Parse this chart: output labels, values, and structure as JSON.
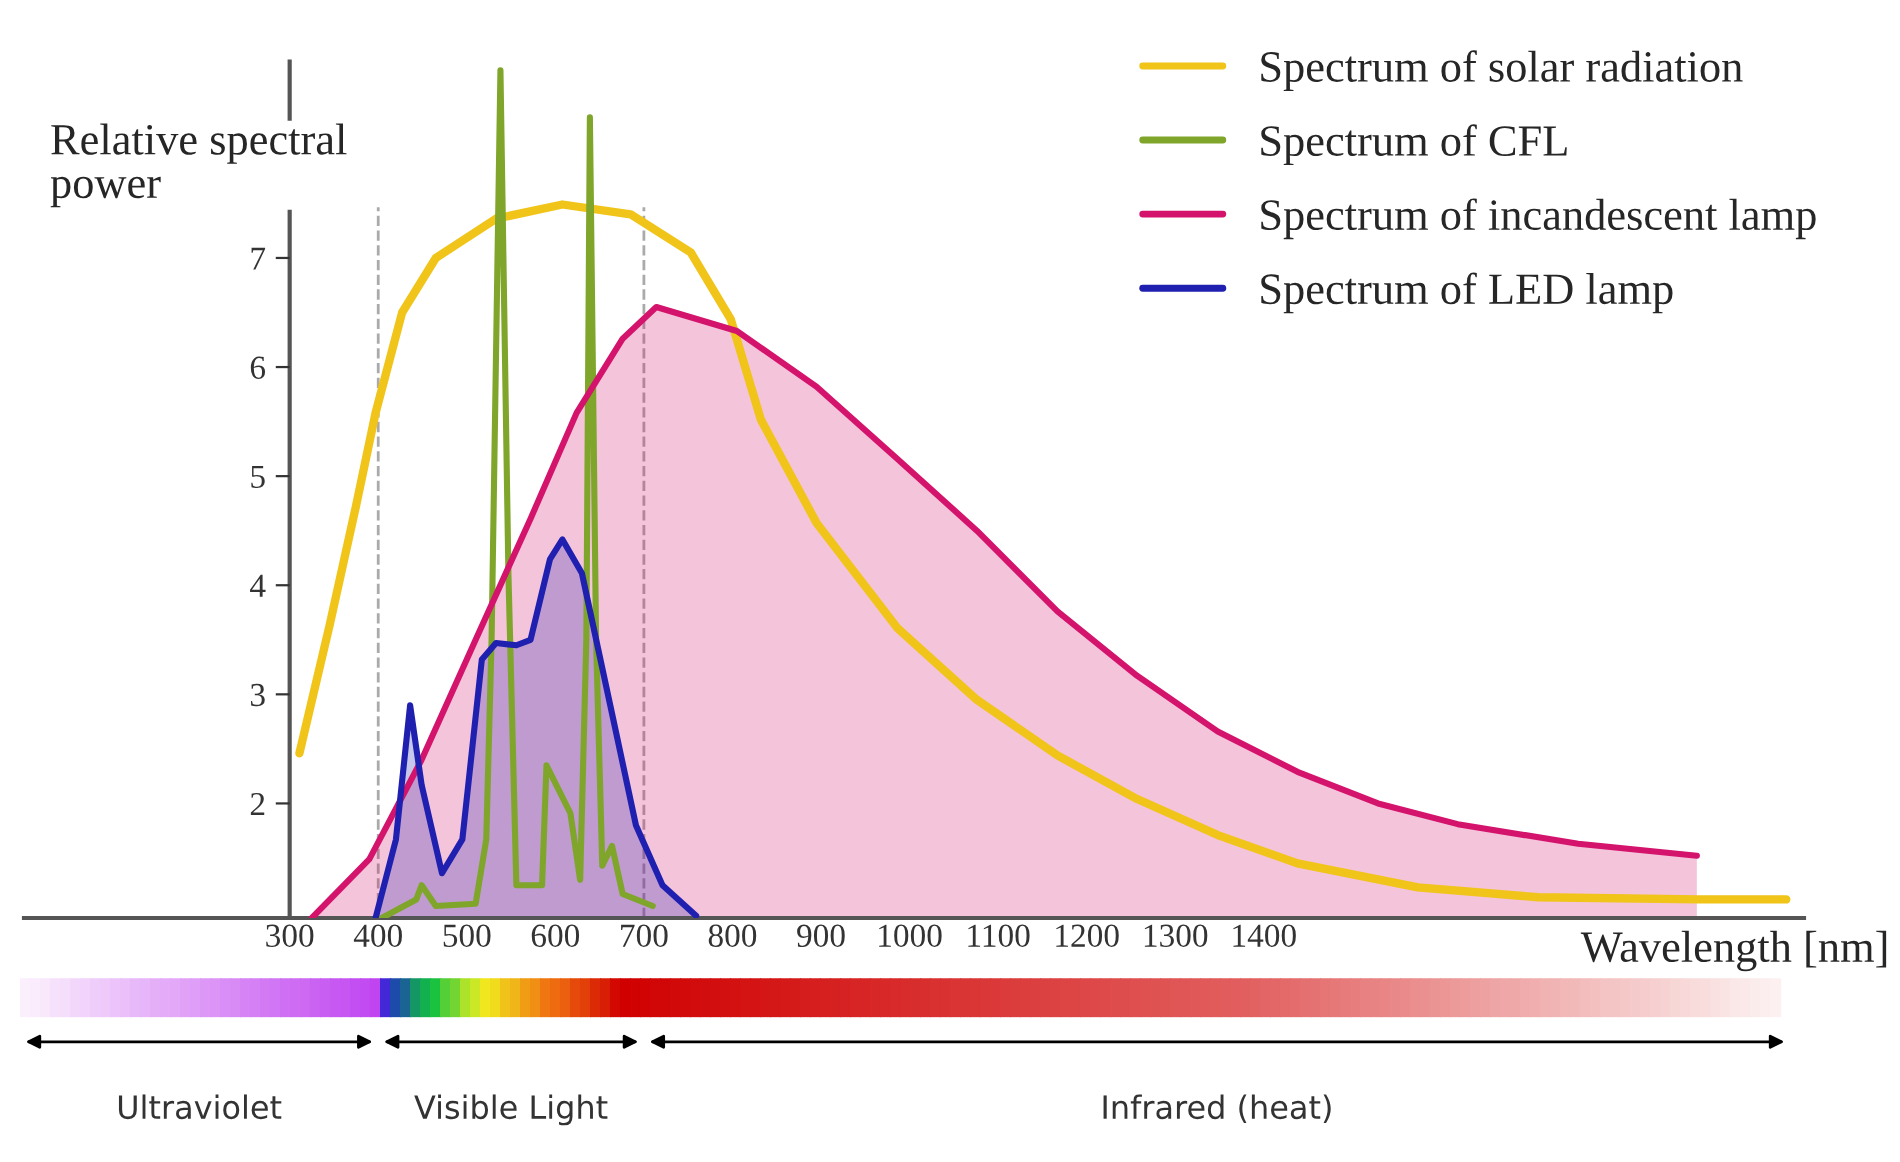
{
  "chart_data": {
    "type": "line",
    "xlabel": "Wavelength [nm]",
    "ylabel": "Relative spectral\npower",
    "xlim": [
      0,
      2010
    ],
    "ylim": [
      0.95,
      8.8
    ],
    "xticks": [
      300,
      400,
      500,
      600,
      700,
      800,
      900,
      1000,
      1100,
      1200,
      1300,
      1400
    ],
    "yticks": [
      2,
      3,
      4,
      5,
      6,
      7
    ],
    "legend": "top right",
    "series": [
      {
        "name": "Spectrum of solar radiation",
        "color": "#f0c419",
        "x": [
          311,
          345,
          375,
          397,
          427,
          465,
          533,
          608,
          685,
          753,
          798,
          832,
          895,
          986,
          1076,
          1167,
          1257,
          1348,
          1438,
          1574,
          1710,
          1891,
          1990
        ],
        "values": [
          2.46,
          3.63,
          4.73,
          5.58,
          6.5,
          7.0,
          7.36,
          7.49,
          7.4,
          7.05,
          6.44,
          5.52,
          4.57,
          3.61,
          2.95,
          2.44,
          2.04,
          1.71,
          1.45,
          1.23,
          1.14,
          1.12,
          1.12
        ]
      },
      {
        "name": "Spectrum of CFL",
        "color": "#7fa62a",
        "x": [
          404,
          443,
          449,
          465,
          510,
          522,
          528,
          538,
          547,
          556,
          585,
          590,
          601,
          617,
          628,
          635,
          639,
          646,
          653,
          664,
          676,
          710
        ],
        "values": [
          0.95,
          1.12,
          1.25,
          1.06,
          1.08,
          1.67,
          3.5,
          8.72,
          4.11,
          1.25,
          1.25,
          2.35,
          2.17,
          1.91,
          1.3,
          3.5,
          8.29,
          3.5,
          1.43,
          1.61,
          1.17,
          1.06
        ]
      },
      {
        "name": "Spectrum of incandescent lamp",
        "type": "area",
        "color": "#d4136c",
        "x": [
          325,
          390,
          449,
          510,
          572,
          624,
          676,
          714,
          805,
          895,
          986,
          1076,
          1167,
          1257,
          1348,
          1438,
          1529,
          1619,
          1755,
          1889
        ],
        "values": [
          0.95,
          1.49,
          2.4,
          3.5,
          4.61,
          5.58,
          6.26,
          6.55,
          6.33,
          5.82,
          5.16,
          4.5,
          3.76,
          3.17,
          2.66,
          2.29,
          2.0,
          1.81,
          1.63,
          1.52
        ]
      },
      {
        "name": "Spectrum of LED lamp",
        "type": "area",
        "color": "#2020b0",
        "x": [
          397,
          420,
          436,
          449,
          472,
          495,
          517,
          533,
          556,
          572,
          594,
          608,
          630,
          662,
          691,
          721,
          759
        ],
        "values": [
          0.95,
          1.67,
          2.9,
          2.17,
          1.36,
          1.67,
          3.32,
          3.47,
          3.45,
          3.5,
          4.24,
          4.42,
          4.11,
          2.9,
          1.8,
          1.25,
          0.97
        ]
      }
    ],
    "ref_lines": [
      {
        "axis": "x",
        "value": 400,
        "color": "#aaaaaa",
        "line_style": "dashed"
      },
      {
        "axis": "x",
        "value": 700,
        "color": "#aaaaaa",
        "line_style": "dashed"
      }
    ],
    "annotations": [
      "Ultraviolet",
      "Visible Light",
      "Infrared (heat)"
    ]
  }
}
